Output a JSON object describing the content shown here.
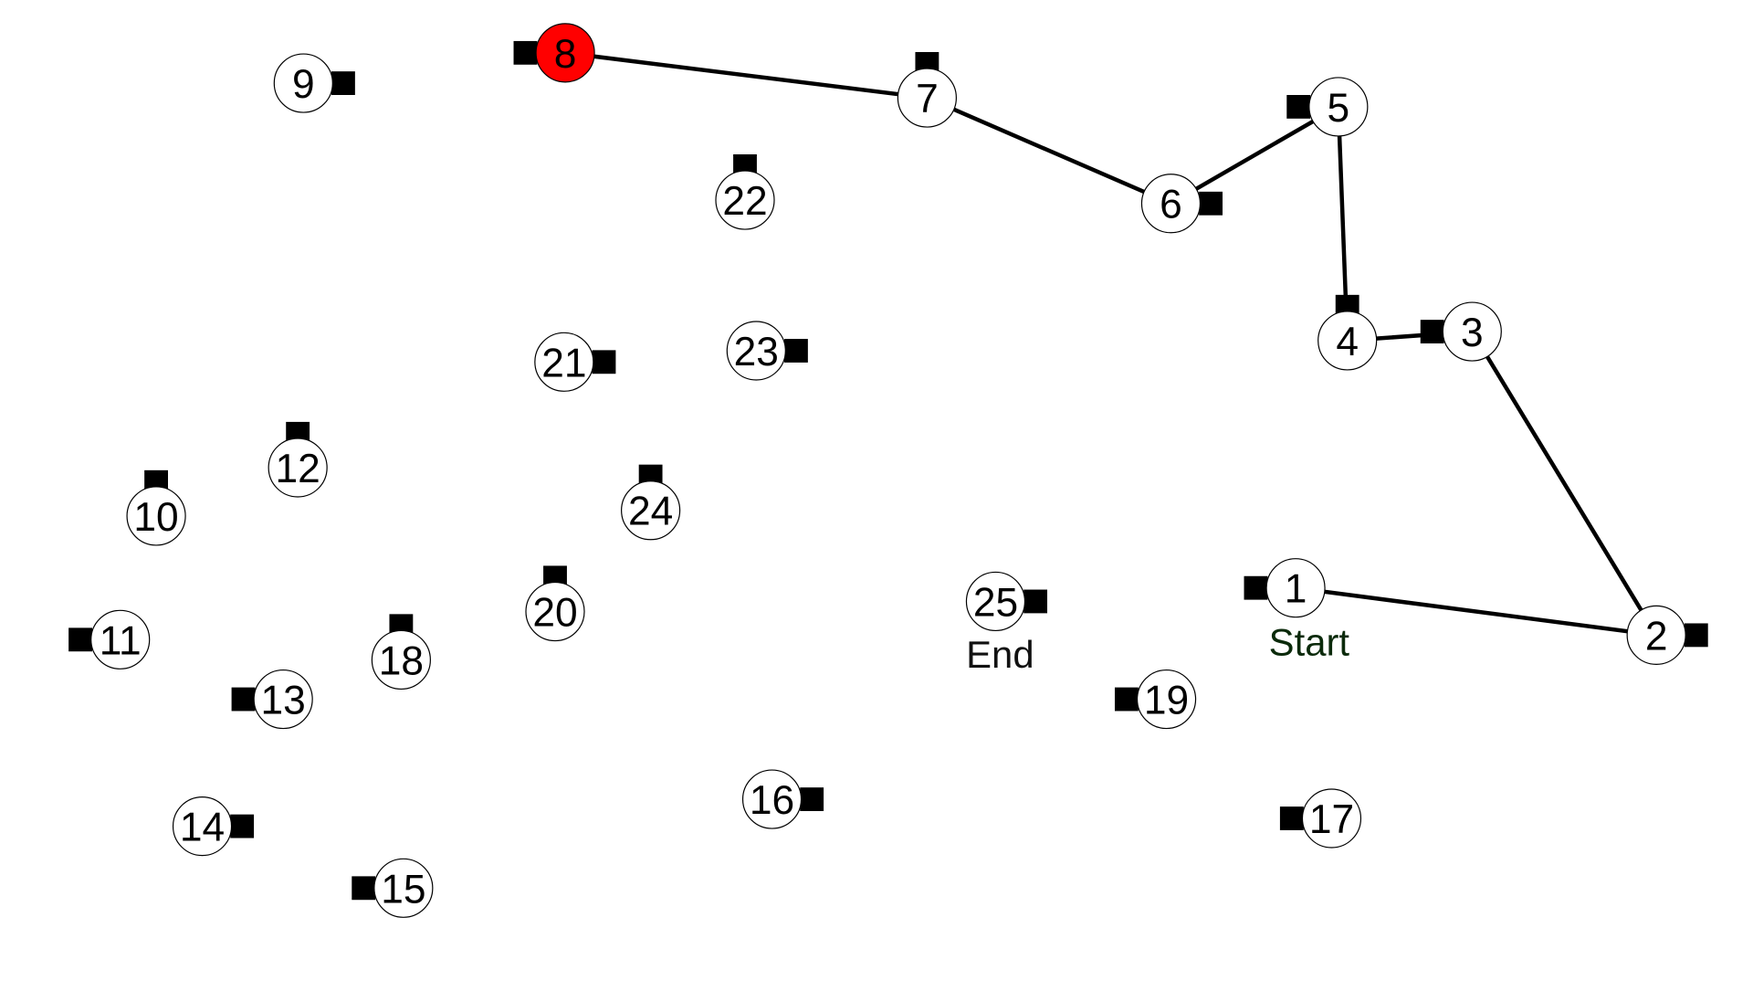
{
  "diagram": {
    "colors": {
      "background": "#ffffff",
      "node_fill": "#ffffff",
      "node_stroke": "#000000",
      "current_node_fill": "#ff0000",
      "marker_fill": "#000000",
      "path_stroke": "#000000",
      "start_label_color": "#0b2a0b",
      "end_label_color": "#111111"
    },
    "current_node": "8",
    "start_label": "Start",
    "end_label": "End",
    "start_node": "1",
    "end_node": "25",
    "nodes": [
      {
        "id": "1",
        "label": "1",
        "marker_side": "left"
      },
      {
        "id": "2",
        "label": "2",
        "marker_side": "right"
      },
      {
        "id": "3",
        "label": "3",
        "marker_side": "left"
      },
      {
        "id": "4",
        "label": "4",
        "marker_side": "top"
      },
      {
        "id": "5",
        "label": "5",
        "marker_side": "left"
      },
      {
        "id": "6",
        "label": "6",
        "marker_side": "right"
      },
      {
        "id": "7",
        "label": "7",
        "marker_side": "top"
      },
      {
        "id": "8",
        "label": "8",
        "marker_side": "left"
      },
      {
        "id": "9",
        "label": "9",
        "marker_side": "right"
      },
      {
        "id": "10",
        "label": "10",
        "marker_side": "top"
      },
      {
        "id": "11",
        "label": "11",
        "marker_side": "left"
      },
      {
        "id": "12",
        "label": "12",
        "marker_side": "top"
      },
      {
        "id": "13",
        "label": "13",
        "marker_side": "left"
      },
      {
        "id": "14",
        "label": "14",
        "marker_side": "right"
      },
      {
        "id": "15",
        "label": "15",
        "marker_side": "left"
      },
      {
        "id": "16",
        "label": "16",
        "marker_side": "right"
      },
      {
        "id": "17",
        "label": "17",
        "marker_side": "left"
      },
      {
        "id": "18",
        "label": "18",
        "marker_side": "top"
      },
      {
        "id": "19",
        "label": "19",
        "marker_side": "left"
      },
      {
        "id": "20",
        "label": "20",
        "marker_side": "top"
      },
      {
        "id": "21",
        "label": "21",
        "marker_side": "right"
      },
      {
        "id": "22",
        "label": "22",
        "marker_side": "top"
      },
      {
        "id": "23",
        "label": "23",
        "marker_side": "right"
      },
      {
        "id": "24",
        "label": "24",
        "marker_side": "top"
      },
      {
        "id": "25",
        "label": "25",
        "marker_side": "right"
      }
    ],
    "path": [
      "1",
      "2",
      "3",
      "4",
      "5",
      "6",
      "7",
      "8"
    ]
  }
}
